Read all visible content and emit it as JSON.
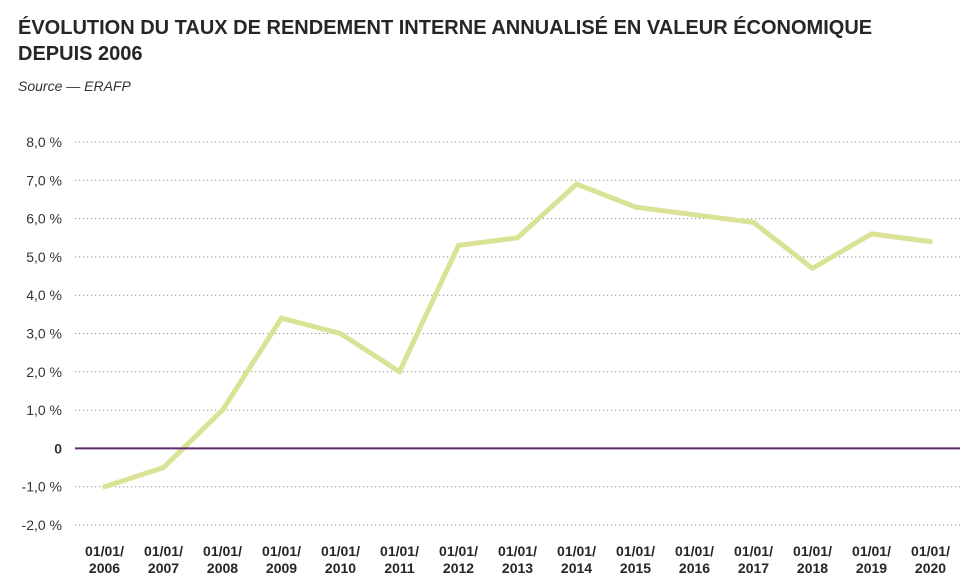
{
  "colors": {
    "title": "#262626",
    "line": "#dae296",
    "zero_line": "#5e2c6e",
    "grid": "#8a8a8a",
    "tick_text": "#333333"
  },
  "chart_data": {
    "type": "line",
    "title": "ÉVOLUTION DU TAUX DE RENDEMENT INTERNE ANNUALISÉ EN VALEUR ÉCONOMIQUE DEPUIS 2006",
    "source": "Source — ERAFP",
    "categories": [
      "01/01/2006",
      "01/01/2007",
      "01/01/2008",
      "01/01/2009",
      "01/01/2010",
      "01/01/2011",
      "01/01/2012",
      "01/01/2013",
      "01/01/2014",
      "01/01/2015",
      "01/01/2016",
      "01/01/2017",
      "01/01/2018",
      "01/01/2019",
      "01/01/2020"
    ],
    "values": [
      -1.0,
      -0.5,
      1.0,
      3.4,
      3.0,
      2.0,
      5.3,
      5.5,
      6.9,
      6.3,
      6.1,
      5.9,
      4.7,
      5.6,
      5.4
    ],
    "ylim": [
      -2,
      8
    ],
    "yticks": [
      8,
      7,
      6,
      5,
      4,
      3,
      2,
      1,
      0,
      -1,
      -2
    ],
    "ytick_labels": [
      "8,0 %",
      "7,0 %",
      "6,0 %",
      "5,0 %",
      "4,0 %",
      "3,0 %",
      "2,0 %",
      "1,0 %",
      "0",
      "-1,0 %",
      "-2,0 %"
    ],
    "grid": true,
    "zero_line": true
  }
}
